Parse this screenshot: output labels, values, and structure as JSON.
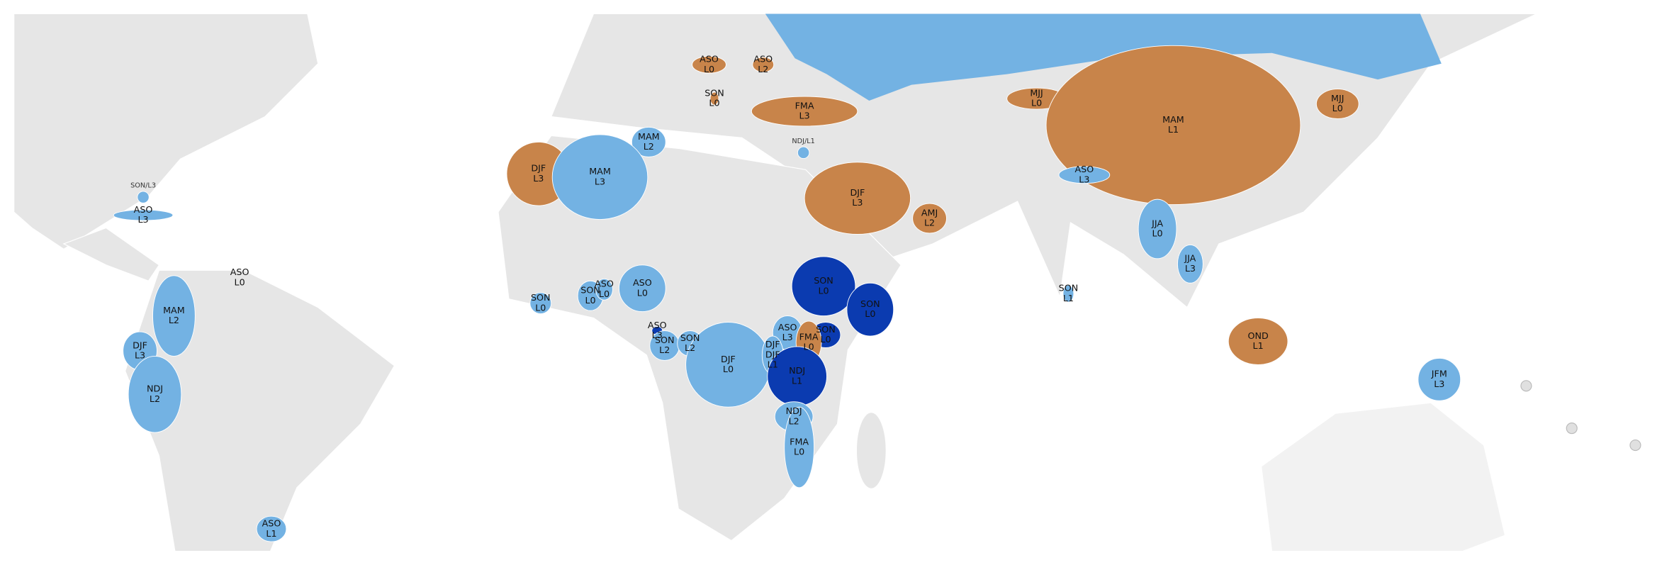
{
  "regions": [
    {
      "lines": [
        "ASO",
        "L0"
      ],
      "color": "#c8844a"
    },
    {
      "lines": [
        "ASO",
        "L2"
      ],
      "color": "#c8844a"
    },
    {
      "lines": [
        "SON",
        "L0"
      ],
      "color": "#c8844a"
    },
    {
      "lines": [
        "FMA",
        "L3"
      ],
      "color": "#c8844a"
    },
    {
      "lines": [
        "MJJ",
        "L0"
      ],
      "color": "#c8844a"
    },
    {
      "lines": [
        "MAM",
        "L1"
      ],
      "color": "#c8844a"
    },
    {
      "lines": [
        "MJJ",
        "L0"
      ],
      "color": "#c8844a"
    },
    {
      "lines": [
        "MAM",
        "L2"
      ],
      "color": "#73b2e3"
    },
    {
      "lines": [
        "DJF",
        "L3"
      ],
      "color": "#c8844a"
    },
    {
      "lines": [
        "MAM",
        "L3"
      ],
      "color": "#73b2e3"
    },
    {
      "lines": [
        "DJF",
        "L3"
      ],
      "color": "#c8844a"
    },
    {
      "lines": [
        "AMJ",
        "L2"
      ],
      "color": "#c8844a"
    },
    {
      "lines": [
        "ASO",
        "L3"
      ],
      "color": "#73b2e3"
    },
    {
      "lines": [
        "ASO",
        "L3"
      ],
      "color": "#73b2e3"
    },
    {
      "lines": [
        "ASO",
        "L0"
      ],
      "color": "#e6e6e6"
    },
    {
      "lines": [
        "MAM",
        "L2"
      ],
      "color": "#73b2e3"
    },
    {
      "lines": [
        "DJF",
        "L3"
      ],
      "color": "#73b2e3"
    },
    {
      "lines": [
        "NDJ",
        "L2"
      ],
      "color": "#73b2e3"
    },
    {
      "lines": [
        "ASO",
        "L1"
      ],
      "color": "#73b2e3"
    },
    {
      "lines": [
        "JJA",
        "L0"
      ],
      "color": "#73b2e3"
    },
    {
      "lines": [
        "JJA",
        "L3"
      ],
      "color": "#73b2e3"
    },
    {
      "lines": [
        "SON",
        "L1"
      ],
      "color": "#73b2e3"
    },
    {
      "lines": [
        "SON",
        "L0"
      ],
      "color": "#73b2e3"
    },
    {
      "lines": [
        "SON",
        "L0"
      ],
      "color": "#73b2e3"
    },
    {
      "lines": [
        "ASO",
        "L0"
      ],
      "color": "#73b2e3"
    },
    {
      "lines": [
        "ASO",
        "L0"
      ],
      "color": "#73b2e3"
    },
    {
      "lines": [
        "SON",
        "L0"
      ],
      "color": "#0b3bb0"
    },
    {
      "lines": [
        "SON",
        "L0"
      ],
      "color": "#0b3bb0"
    },
    {
      "lines": [
        "ASO",
        "L3"
      ],
      "color": "#0b3bb0"
    },
    {
      "lines": [
        "SON",
        "L2"
      ],
      "color": "#73b2e3"
    },
    {
      "lines": [
        "SON",
        "L2"
      ],
      "color": "#73b2e3"
    },
    {
      "lines": [
        "DJF",
        "L0"
      ],
      "color": "#73b2e3"
    },
    {
      "lines": [
        "ASO",
        "L3"
      ],
      "color": "#73b2e3"
    },
    {
      "lines": [
        "SON",
        "L0"
      ],
      "color": "#0b3bb0"
    },
    {
      "lines": [
        "FMA",
        "L0"
      ],
      "color": "#c8844a"
    },
    {
      "lines": [
        "DJF",
        "DJF",
        "L1"
      ],
      "color": "#73b2e3"
    },
    {
      "lines": [
        "NDJ",
        "L1"
      ],
      "color": "#0b3bb0"
    },
    {
      "lines": [
        "NDJ",
        "L2"
      ],
      "color": "#73b2e3"
    },
    {
      "lines": [
        "FMA",
        "L0"
      ],
      "color": "#73b2e3"
    },
    {
      "lines": [
        "OND",
        "L1"
      ],
      "color": "#c8844a"
    },
    {
      "lines": [
        "JFM",
        "L3"
      ],
      "color": "#73b2e3"
    }
  ],
  "points": [
    {
      "label": "SON/L3",
      "color": "#73b2e3"
    },
    {
      "label": "NDJ/L1",
      "color": "#73b2e3"
    }
  ]
}
